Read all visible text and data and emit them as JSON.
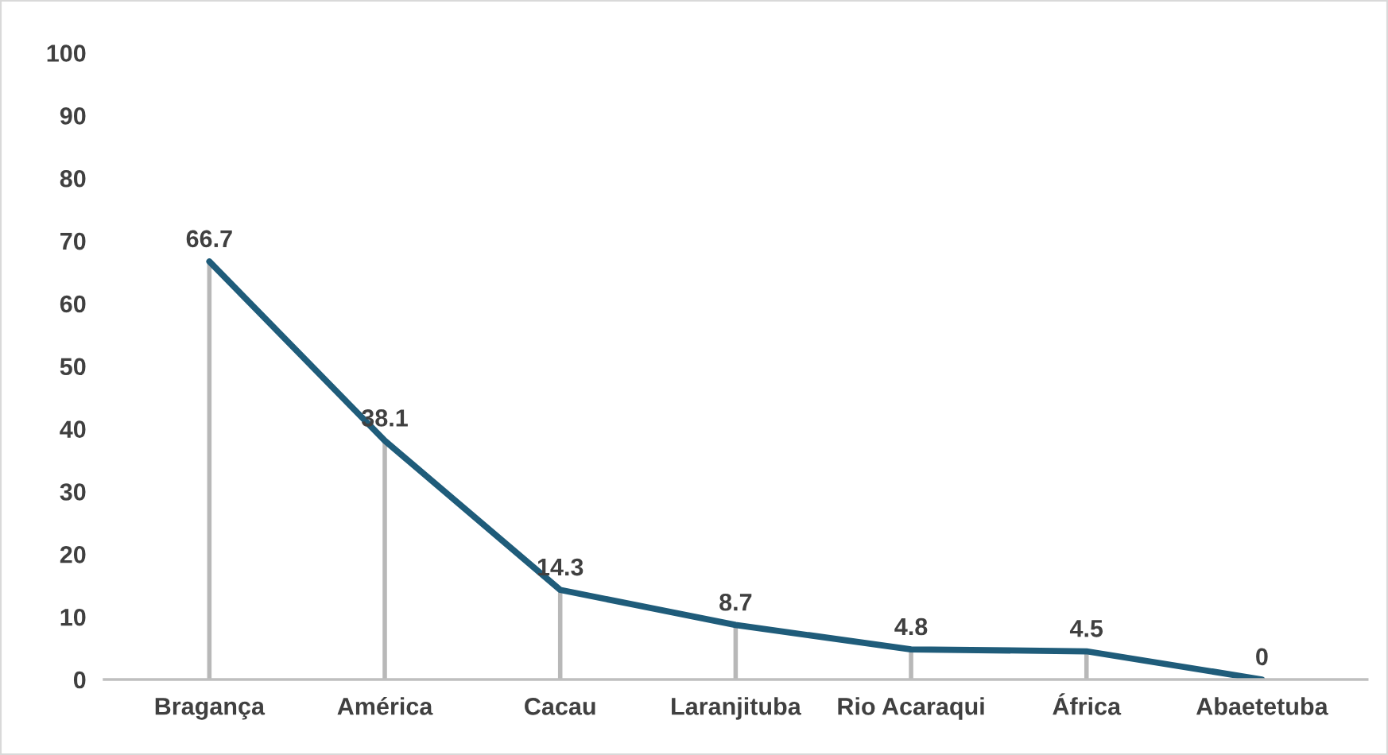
{
  "chart_data": {
    "type": "line",
    "categories": [
      "Bragança",
      "América",
      "Cacau",
      "Laranjituba",
      "Rio Acaraqui",
      "África",
      "Abaetetuba"
    ],
    "series": [
      {
        "color": "#1f5c7a",
        "values": [
          66.7,
          38.1,
          14.3,
          8.7,
          4.8,
          4.5,
          0
        ]
      }
    ],
    "ylim": [
      0,
      100
    ],
    "yticks": [
      0,
      10,
      20,
      30,
      40,
      50,
      60,
      70,
      80,
      90,
      100
    ],
    "grid": false,
    "legend": false,
    "marker": "none",
    "line_style": "solid",
    "data_labels": true
  }
}
